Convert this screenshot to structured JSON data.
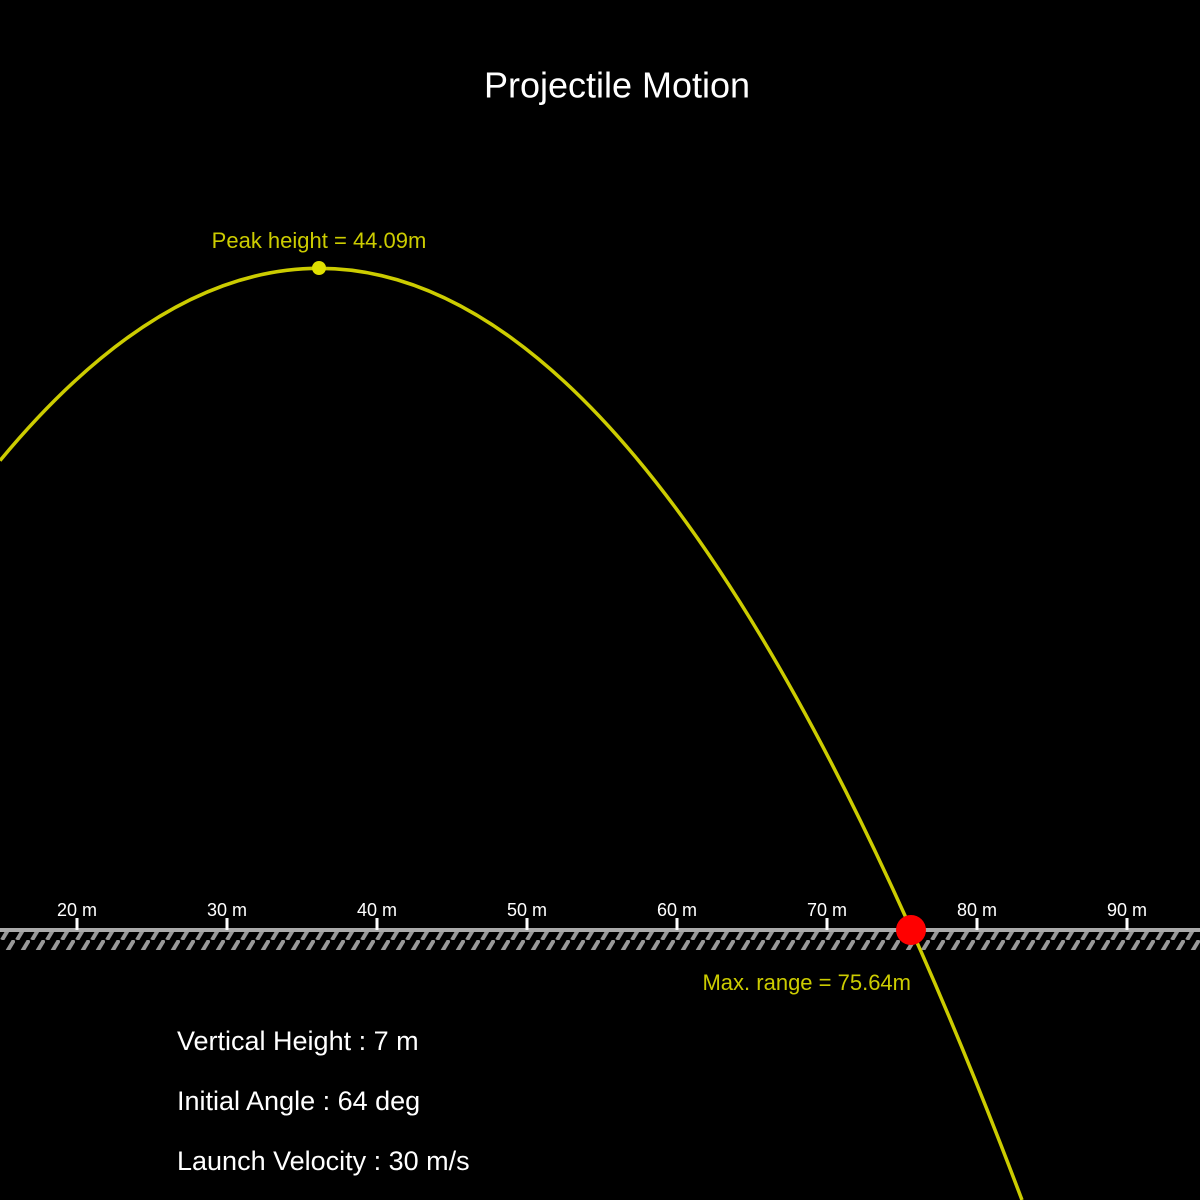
{
  "header": {
    "title": "Projectile Motion"
  },
  "ruler": {
    "ticks": [
      "20 m",
      "30 m",
      "40 m",
      "50 m",
      "60 m",
      "70 m",
      "80 m",
      "90 m"
    ]
  },
  "annotations": {
    "peak": "Peak height = 44.09m",
    "range": "Max. range = 75.64m"
  },
  "parameters": [
    "Vertical Height : 7 m",
    "Initial Angle : 64 deg",
    "Launch Velocity : 30 m/s"
  ]
}
